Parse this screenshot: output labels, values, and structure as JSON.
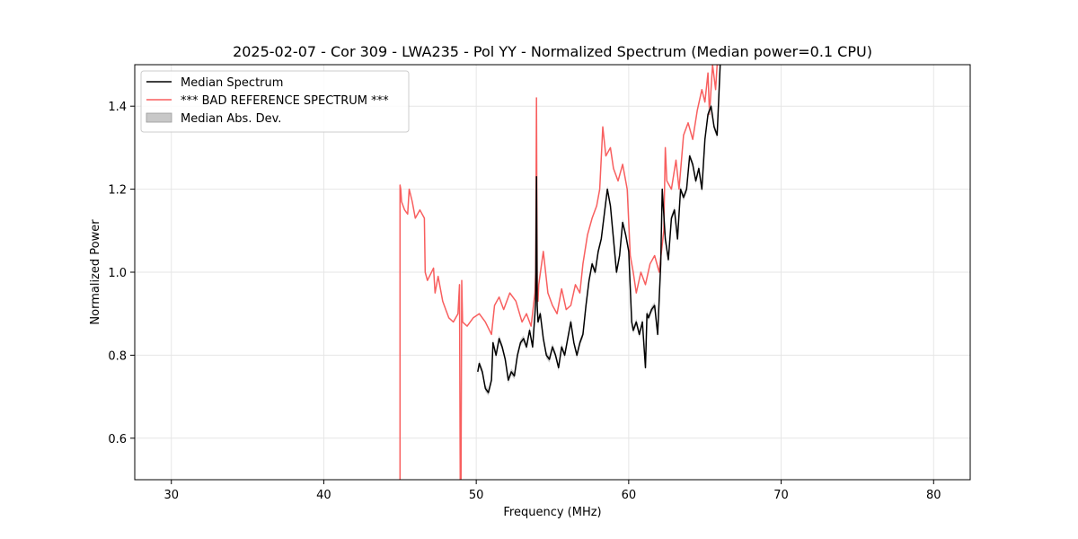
{
  "chart_data": {
    "type": "line",
    "title": "2025-02-07 - Cor 309 - LWA235 - Pol YY - Normalized Spectrum (Median power=0.1 CPU)",
    "xlabel": "Frequency (MHz)",
    "ylabel": "Normalized Power",
    "xlim": [
      27.6,
      82.4
    ],
    "ylim": [
      0.5,
      1.5
    ],
    "xticks": [
      30,
      40,
      50,
      60,
      70,
      80
    ],
    "yticks": [
      0.6,
      0.8,
      1.0,
      1.2,
      1.4
    ],
    "grid": true,
    "legend_position": "top-left",
    "legend": [
      {
        "label": "Median Spectrum",
        "kind": "line",
        "color": "#000000"
      },
      {
        "label": "*** BAD REFERENCE SPECTRUM ***",
        "kind": "line",
        "color": "#f85f5f"
      },
      {
        "label": "Median Abs. Dev.",
        "kind": "patch",
        "color": "#c8c8c8"
      }
    ],
    "series": [
      {
        "name": "*** BAD REFERENCE SPECTRUM ***",
        "color": "#f85f5f",
        "x": [
          45.0,
          45.0,
          45.05,
          45.1,
          45.3,
          45.5,
          45.6,
          45.8,
          46.0,
          46.3,
          46.6,
          46.65,
          46.8,
          47.2,
          47.3,
          47.5,
          47.8,
          48.0,
          48.2,
          48.5,
          48.8,
          48.9,
          48.95,
          49.0,
          49.05,
          49.1,
          49.4,
          49.8,
          50.2,
          50.6,
          51.0,
          51.2,
          51.5,
          51.8,
          52.2,
          52.6,
          53.0,
          53.3,
          53.6,
          53.85,
          53.9,
          53.95,
          54.0,
          54.05,
          54.1,
          54.4,
          54.7,
          55.0,
          55.3,
          55.6,
          55.9,
          56.2,
          56.5,
          56.8,
          57.0,
          57.3,
          57.6,
          57.9,
          58.1,
          58.3,
          58.5,
          58.8,
          59.0,
          59.3,
          59.6,
          59.9,
          60.1,
          60.3,
          60.5,
          60.8,
          61.1,
          61.4,
          61.7,
          62.0,
          62.3,
          62.4,
          62.5,
          62.8,
          63.1,
          63.3,
          63.6,
          63.9,
          64.2,
          64.5,
          64.8,
          65.0,
          65.2,
          65.3,
          65.5,
          65.7,
          65.8,
          66.0
        ],
        "y": [
          0.5,
          1.21,
          1.2,
          1.17,
          1.15,
          1.14,
          1.2,
          1.17,
          1.13,
          1.15,
          1.13,
          1.0,
          0.98,
          1.01,
          0.95,
          0.99,
          0.93,
          0.91,
          0.89,
          0.88,
          0.9,
          0.97,
          0.5,
          0.5,
          0.98,
          0.88,
          0.87,
          0.89,
          0.9,
          0.88,
          0.85,
          0.92,
          0.94,
          0.91,
          0.95,
          0.93,
          0.88,
          0.9,
          0.87,
          0.95,
          1.0,
          1.42,
          0.96,
          0.93,
          0.97,
          1.05,
          0.95,
          0.92,
          0.9,
          0.96,
          0.91,
          0.92,
          0.97,
          0.95,
          1.02,
          1.09,
          1.13,
          1.16,
          1.2,
          1.35,
          1.28,
          1.3,
          1.25,
          1.22,
          1.26,
          1.2,
          1.04,
          1.0,
          0.95,
          1.0,
          0.97,
          1.02,
          1.04,
          1.0,
          1.1,
          1.3,
          1.22,
          1.2,
          1.27,
          1.2,
          1.33,
          1.36,
          1.32,
          1.39,
          1.44,
          1.41,
          1.48,
          1.38,
          1.5,
          1.44,
          1.5,
          1.5
        ]
      },
      {
        "name": "Median Spectrum",
        "color": "#000000",
        "x": [
          50.1,
          50.2,
          50.4,
          50.6,
          50.8,
          51.0,
          51.1,
          51.3,
          51.5,
          51.7,
          51.9,
          52.1,
          52.3,
          52.5,
          52.7,
          52.9,
          53.1,
          53.3,
          53.5,
          53.7,
          53.85,
          53.9,
          53.95,
          54.0,
          54.05,
          54.2,
          54.4,
          54.6,
          54.8,
          55.0,
          55.2,
          55.4,
          55.6,
          55.8,
          56.0,
          56.2,
          56.4,
          56.6,
          56.8,
          57.0,
          57.2,
          57.4,
          57.6,
          57.8,
          58.0,
          58.2,
          58.4,
          58.6,
          58.8,
          59.0,
          59.2,
          59.4,
          59.6,
          59.8,
          60.0,
          60.2,
          60.3,
          60.5,
          60.7,
          60.9,
          61.1,
          61.2,
          61.3,
          61.5,
          61.7,
          61.9,
          62.1,
          62.2,
          62.4,
          62.6,
          62.8,
          63.0,
          63.2,
          63.4,
          63.6,
          63.8,
          64.0,
          64.2,
          64.4,
          64.6,
          64.8,
          65.0,
          65.2,
          65.4,
          65.6,
          65.8,
          66.0
        ],
        "y": [
          0.76,
          0.78,
          0.76,
          0.72,
          0.71,
          0.74,
          0.83,
          0.8,
          0.84,
          0.82,
          0.79,
          0.74,
          0.76,
          0.75,
          0.8,
          0.83,
          0.84,
          0.82,
          0.86,
          0.82,
          0.9,
          0.93,
          1.23,
          0.92,
          0.88,
          0.9,
          0.84,
          0.8,
          0.79,
          0.82,
          0.8,
          0.77,
          0.82,
          0.8,
          0.84,
          0.88,
          0.83,
          0.8,
          0.83,
          0.85,
          0.92,
          0.98,
          1.02,
          1.0,
          1.05,
          1.08,
          1.14,
          1.2,
          1.16,
          1.08,
          1.0,
          1.04,
          1.12,
          1.09,
          1.05,
          0.88,
          0.86,
          0.88,
          0.85,
          0.88,
          0.77,
          0.9,
          0.89,
          0.91,
          0.92,
          0.85,
          1.02,
          1.2,
          1.08,
          1.03,
          1.13,
          1.15,
          1.08,
          1.2,
          1.18,
          1.2,
          1.28,
          1.26,
          1.22,
          1.25,
          1.2,
          1.32,
          1.38,
          1.4,
          1.35,
          1.33,
          1.5
        ]
      }
    ],
    "mad_width": 0.008
  }
}
